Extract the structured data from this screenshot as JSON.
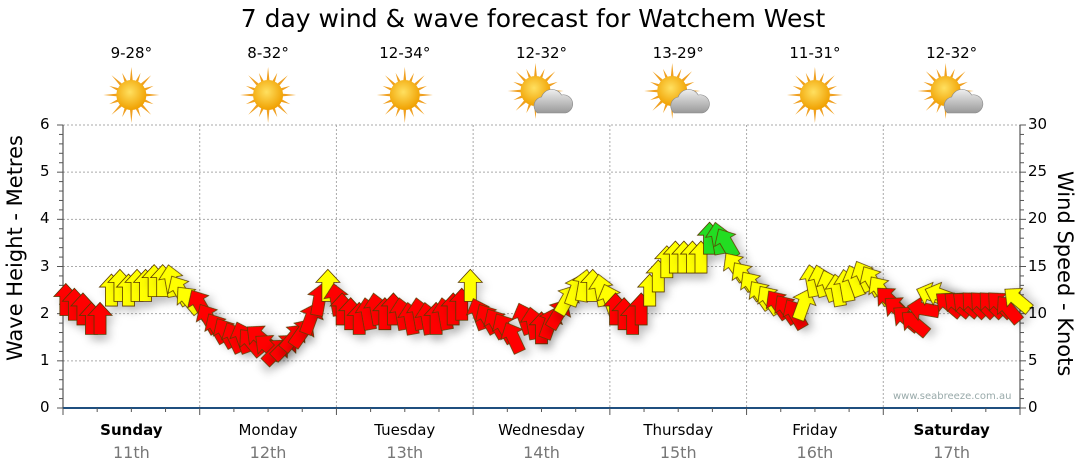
{
  "chart_data": {
    "type": "scatter",
    "title": "7 day wind & wave forecast for Watchem West",
    "ylabel_left": "Wave Height - Metres",
    "ylabel_right": "Wind Speed - Knots",
    "ylim_left": [
      0,
      6
    ],
    "ylim_right": [
      0,
      30
    ],
    "yticks_left": [
      "0",
      "1",
      "2",
      "3",
      "4",
      "5",
      "6"
    ],
    "yticks_right": [
      "0",
      "5",
      "10",
      "15",
      "20",
      "25",
      "30"
    ],
    "grid": true,
    "watermark": "www.seabreeze.com.au",
    "days": [
      {
        "name": "Sunday",
        "date": "11th",
        "temp": "9-28°",
        "weather": "sunny",
        "bold": true
      },
      {
        "name": "Monday",
        "date": "12th",
        "temp": "8-32°",
        "weather": "sunny",
        "bold": false
      },
      {
        "name": "Tuesday",
        "date": "13th",
        "temp": "12-34°",
        "weather": "sunny",
        "bold": false
      },
      {
        "name": "Wednesday",
        "date": "14th",
        "temp": "12-32°",
        "weather": "partly-cloudy",
        "bold": false
      },
      {
        "name": "Thursday",
        "date": "15th",
        "temp": "13-29°",
        "weather": "partly-cloudy",
        "bold": false
      },
      {
        "name": "Friday",
        "date": "16th",
        "temp": "11-31°",
        "weather": "sunny",
        "bold": false
      },
      {
        "name": "Saturday",
        "date": "17th",
        "temp": "12-32°",
        "weather": "partly-cloudy",
        "bold": true
      }
    ],
    "colors": {
      "r": "#ff0000",
      "y": "#ffff00",
      "g": "#22dd22"
    },
    "wind_series_fields": [
      "hour",
      "knots",
      "direction_rotation_deg",
      "color"
    ],
    "wind": [
      [
        0.5,
        11.5,
        0,
        "r"
      ],
      [
        2,
        11,
        0,
        "r"
      ],
      [
        3.5,
        10.5,
        0,
        "r"
      ],
      [
        5,
        9.5,
        0,
        "r"
      ],
      [
        6.5,
        9.5,
        0,
        "r"
      ],
      [
        8.5,
        12.5,
        0,
        "y"
      ],
      [
        10,
        13,
        0,
        "y"
      ],
      [
        11.5,
        12.5,
        0,
        "y"
      ],
      [
        13,
        13,
        0,
        "y"
      ],
      [
        14.5,
        13,
        0,
        "y"
      ],
      [
        16,
        13.5,
        0,
        "y"
      ],
      [
        17.5,
        13.5,
        0,
        "y"
      ],
      [
        19,
        13.5,
        -10,
        "y"
      ],
      [
        20.5,
        12.5,
        -30,
        "y"
      ],
      [
        22,
        11.5,
        -40,
        "y"
      ],
      [
        24,
        11,
        -30,
        "r"
      ],
      [
        25.5,
        9.5,
        -30,
        "r"
      ],
      [
        27,
        8.5,
        -30,
        "r"
      ],
      [
        28.5,
        8,
        -30,
        "r"
      ],
      [
        30,
        7.5,
        -25,
        "r"
      ],
      [
        31.5,
        7.5,
        -20,
        "r"
      ],
      [
        33,
        7,
        -40,
        "r"
      ],
      [
        34.5,
        7.5,
        -50,
        "r"
      ],
      [
        36,
        6.5,
        -50,
        "r"
      ],
      [
        37.5,
        6,
        45,
        "r"
      ],
      [
        39,
        6.5,
        45,
        "r"
      ],
      [
        40.5,
        7.5,
        40,
        "r"
      ],
      [
        42,
        8,
        35,
        "r"
      ],
      [
        43.5,
        9.5,
        20,
        "r"
      ],
      [
        45,
        11.5,
        10,
        "r"
      ],
      [
        46.5,
        13,
        0,
        "y"
      ],
      [
        48,
        11.5,
        -10,
        "r"
      ],
      [
        49,
        10.5,
        0,
        "r"
      ],
      [
        50.5,
        10,
        0,
        "r"
      ],
      [
        52,
        9.5,
        0,
        "r"
      ],
      [
        53.5,
        10,
        -10,
        "r"
      ],
      [
        55,
        10.5,
        -10,
        "r"
      ],
      [
        56.5,
        10,
        0,
        "r"
      ],
      [
        58,
        10.5,
        0,
        "r"
      ],
      [
        59.5,
        10,
        -10,
        "r"
      ],
      [
        61,
        9.5,
        -10,
        "r"
      ],
      [
        62.5,
        10,
        -10,
        "r"
      ],
      [
        64,
        9.5,
        -10,
        "r"
      ],
      [
        65.5,
        9.5,
        0,
        "r"
      ],
      [
        67,
        10,
        -10,
        "r"
      ],
      [
        68.5,
        10.5,
        0,
        "r"
      ],
      [
        70,
        11,
        0,
        "r"
      ],
      [
        71.5,
        13,
        0,
        "y"
      ],
      [
        73,
        10,
        -20,
        "r"
      ],
      [
        74.5,
        9.5,
        -30,
        "r"
      ],
      [
        76,
        9,
        -30,
        "r"
      ],
      [
        77.5,
        8.5,
        -30,
        "r"
      ],
      [
        79,
        7.5,
        -25,
        "r"
      ],
      [
        81,
        9.5,
        -20,
        "r"
      ],
      [
        82.5,
        9,
        -10,
        "r"
      ],
      [
        84,
        8.5,
        0,
        "r"
      ],
      [
        85.5,
        9,
        20,
        "r"
      ],
      [
        87,
        10,
        30,
        "r"
      ],
      [
        88.5,
        11.5,
        30,
        "y"
      ],
      [
        90,
        12.5,
        20,
        "y"
      ],
      [
        91.5,
        13,
        10,
        "y"
      ],
      [
        93,
        13,
        0,
        "y"
      ],
      [
        94.5,
        12.5,
        -10,
        "y"
      ],
      [
        96,
        11.5,
        -20,
        "y"
      ],
      [
        97,
        10.5,
        0,
        "r"
      ],
      [
        98.5,
        10,
        0,
        "r"
      ],
      [
        100,
        9.5,
        0,
        "r"
      ],
      [
        101.5,
        10.5,
        0,
        "r"
      ],
      [
        103,
        12.5,
        0,
        "y"
      ],
      [
        104.5,
        14,
        0,
        "y"
      ],
      [
        106,
        15.5,
        0,
        "y"
      ],
      [
        107.5,
        16,
        0,
        "y"
      ],
      [
        109,
        16,
        0,
        "y"
      ],
      [
        110.5,
        16,
        0,
        "y"
      ],
      [
        112,
        16,
        0,
        "y"
      ],
      [
        113.5,
        18,
        0,
        "g"
      ],
      [
        115,
        18,
        -10,
        "g"
      ],
      [
        116.5,
        17.5,
        -30,
        "g"
      ],
      [
        118,
        15,
        -35,
        "y"
      ],
      [
        119.5,
        14,
        -35,
        "y"
      ],
      [
        121,
        13,
        -35,
        "y"
      ],
      [
        122.5,
        12,
        -35,
        "y"
      ],
      [
        124,
        11.5,
        -35,
        "y"
      ],
      [
        125.5,
        11,
        -35,
        "r"
      ],
      [
        127,
        10.5,
        -35,
        "r"
      ],
      [
        128.5,
        10,
        -30,
        "r"
      ],
      [
        130,
        11,
        20,
        "y"
      ],
      [
        131.5,
        13.5,
        -10,
        "y"
      ],
      [
        133,
        13.5,
        -15,
        "y"
      ],
      [
        134.5,
        13,
        -20,
        "y"
      ],
      [
        136,
        12.5,
        -10,
        "y"
      ],
      [
        137.5,
        13,
        -10,
        "y"
      ],
      [
        139,
        13.5,
        -20,
        "y"
      ],
      [
        140.5,
        14,
        -25,
        "y"
      ],
      [
        142,
        13.5,
        -30,
        "y"
      ],
      [
        143.5,
        12.5,
        -35,
        "y"
      ],
      [
        145,
        11.5,
        -45,
        "r"
      ],
      [
        146.5,
        10.5,
        -50,
        "r"
      ],
      [
        148,
        9.5,
        -50,
        "r"
      ],
      [
        149.5,
        9,
        -50,
        "r"
      ],
      [
        151,
        10.5,
        -80,
        "r"
      ],
      [
        152.5,
        12,
        -70,
        "y"
      ],
      [
        154,
        12,
        -70,
        "y"
      ],
      [
        155.5,
        11,
        -50,
        "r"
      ],
      [
        157,
        11,
        -50,
        "r"
      ],
      [
        158.5,
        11,
        -50,
        "r"
      ],
      [
        160,
        11,
        -45,
        "r"
      ],
      [
        161.5,
        11,
        -45,
        "r"
      ],
      [
        163,
        11,
        -45,
        "r"
      ],
      [
        164.5,
        11,
        -45,
        "r"
      ],
      [
        166,
        10.5,
        -40,
        "r"
      ],
      [
        167.5,
        11.5,
        -50,
        "y"
      ]
    ]
  }
}
